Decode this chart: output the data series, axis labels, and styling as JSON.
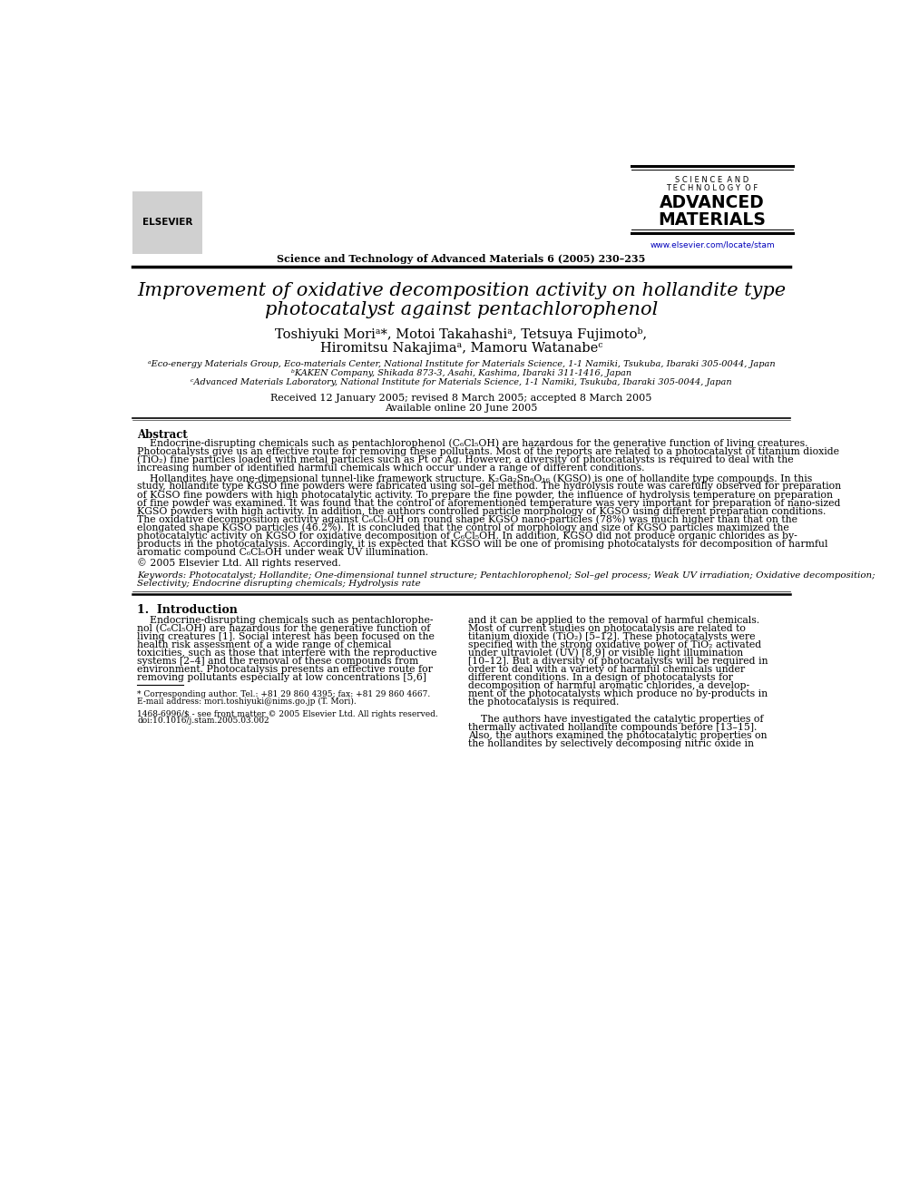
{
  "title_line1": "Improvement of oxidative decomposition activity on hollandite type",
  "title_line2": "photocatalyst against pentachlorophenol",
  "authors_line1": "Toshiyuki Moriᵃ*, Motoi Takahashiᵃ, Tetsuya Fujimotoᵇ,",
  "authors_line2": "Hiromitsu Nakajimaᵃ, Mamoru Watanabeᶜ",
  "affil_a": "ᵃEco-energy Materials Group, Eco-materials Center, National Institute for Materials Science, 1-1 Namiki, Tsukuba, Ibaraki 305-0044, Japan",
  "affil_b": "ᵇKAKEN Company, Shikada 873-3, Asahi, Kashima, Ibaraki 311-1416, Japan",
  "affil_c": "ᶜAdvanced Materials Laboratory, National Institute for Materials Science, 1-1 Namiki, Tsukuba, Ibaraki 305-0044, Japan",
  "received": "Received 12 January 2005; revised 8 March 2005; accepted 8 March 2005",
  "available": "Available online 20 June 2005",
  "journal_header": "Science and Technology of Advanced Materials 6 (2005) 230–235",
  "journal_name_line1": "S C I E N C E  A N D",
  "journal_name_line2": "T E C H N O L O G Y  O F",
  "journal_name_line3": "ADVANCED",
  "journal_name_line4": "MATERIALS",
  "journal_url": "www.elsevier.com/locate/stam",
  "abstract_title": "Abstract",
  "abstract_copyright": "© 2005 Elsevier Ltd. All rights reserved.",
  "keywords_line1": "Keywords: Photocatalyst; Hollandite; One-dimensional tunnel structure; Pentachlorophenol; Sol–gel process; Weak UV irradiation; Oxidative decomposition;",
  "keywords_line2": "Selectivity; Endocrine disrupting chemicals; Hydrolysis rate",
  "section1_title": "1.  Introduction",
  "bg_color": "#ffffff",
  "text_color": "#000000",
  "link_color": "#0000bb",
  "abs_p1_lines": [
    "    Endocrine-disrupting chemicals such as pentachlorophenol (C₆Cl₅OH) are hazardous for the generative function of living creatures.",
    "Photocatalysts give us an effective route for removing these pollutants. Most of the reports are related to a photocatalyst of titanium dioxide",
    "(TiO₂) fine particles loaded with metal particles such as Pt or Ag. However, a diversity of photocatalysts is required to deal with the",
    "increasing number of identified harmful chemicals which occur under a range of different conditions."
  ],
  "abs_p2_lines": [
    "    Hollandites have one-dimensional tunnel-like framework structure. K₂Ga₂Sn₆O₁₆ (KGSO) is one of hollandite type compounds. In this",
    "study, hollandite type KGSO fine powders were fabricated using sol–gel method. The hydrolysis route was carefully observed for preparation",
    "of KGSO fine powders with high photocatalytic activity. To prepare the fine powder, the influence of hydrolysis temperature on preparation",
    "of fine powder was examined. It was found that the control of aforementioned temperature was very important for preparation of nano-sized",
    "KGSO powders with high activity. In addition, the authors controlled particle morphology of KGSO using different preparation conditions.",
    "The oxidative decomposition activity against C₆Cl₅OH on round shape KGSO nano-particles (78%) was much higher than that on the",
    "elongated shape KGSO particles (46.2%). It is concluded that the control of morphology and size of KGSO particles maximized the",
    "photocatalytic activity on KGSO for oxidative decomposition of C₆Cl₅OH. In addition, KGSO did not produce organic chlorides as by-",
    "products in the photocatalysis. Accordingly, it is expected that KGSO will be one of promising photocatalysts for decomposition of harmful",
    "aromatic compound C₆Cl₅OH under weak UV illumination."
  ],
  "intro_left_lines": [
    "    Endocrine-disrupting chemicals such as pentachlorophe-",
    "nol (C₆Cl₅OH) are hazardous for the generative function of",
    "living creatures [1]. Social interest has been focused on the",
    "health risk assessment of a wide range of chemical",
    "toxicities, such as those that interfere with the reproductive",
    "systems [2–4] and the removal of these compounds from",
    "environment. Photocatalysis presents an effective route for",
    "removing pollutants especially at low concentrations [5,6]"
  ],
  "intro_right_lines": [
    "and it can be applied to the removal of harmful chemicals.",
    "Most of current studies on photocatalysis are related to",
    "titanium dioxide (TiO₂) [5–12]. These photocatalysts were",
    "specified with the strong oxidative power of TiO₂ activated",
    "under ultraviolet (UV) [8,9] or visible light illumination",
    "[10–12]. But a diversity of photocatalysts will be required in",
    "order to deal with a variety of harmful chemicals under",
    "different conditions. In a design of photocatalysts for",
    "decomposition of harmful aromatic chlorides, a develop-",
    "ment of the photocatalysts which produce no by-products in",
    "the photocatalysis is required.",
    "",
    "    The authors have investigated the catalytic properties of",
    "thermally activated hollandite compounds before [13–15].",
    "Also, the authors examined the photocatalytic properties on",
    "the hollandites by selectively decomposing nitric oxide in"
  ],
  "footnote_lines": [
    "* Corresponding author. Tel.: +81 29 860 4395; fax: +81 29 860 4667.",
    "E-mail address: mori.toshiyuki@nims.go.jp (T. Mori).",
    "",
    "1468-6996/$ - see front matter © 2005 Elsevier Ltd. All rights reserved.",
    "doi:10.1016/j.stam.2005.03.002"
  ]
}
